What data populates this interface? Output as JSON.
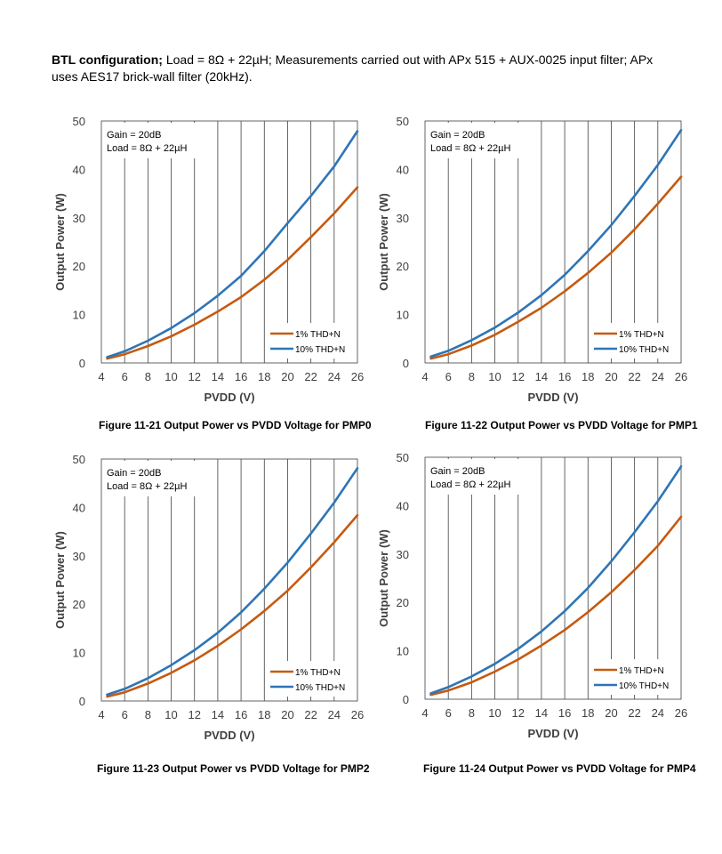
{
  "intro": {
    "bold": "BTL configuration;",
    "text": " Load = 8Ω + 22µH; Measurements carried out with APx 515 + AUX-0025 input filter; APx uses AES17 brick-wall filter (20kHz)."
  },
  "colors": {
    "thd1": "#c55a11",
    "thd10": "#2e75b6",
    "grid": "#404040",
    "text": "#404040"
  },
  "chart_data": [
    {
      "type": "line",
      "caption": "Figure 11-21 Output Power vs PVDD Voltage for PMP0",
      "xlabel": "PVDD (V)",
      "ylabel": "Output Power (W)",
      "xlim": [
        4,
        26
      ],
      "ylim": [
        0,
        50
      ],
      "xticks": [
        4,
        6,
        8,
        10,
        12,
        14,
        16,
        18,
        20,
        22,
        24,
        26
      ],
      "yticks": [
        0,
        10,
        20,
        30,
        40,
        50
      ],
      "annotations": [
        "Gain = 20dB",
        "Load = 8Ω + 22µH"
      ],
      "legend_position": "bottom-right",
      "x": [
        4.5,
        6,
        8,
        10,
        12,
        14,
        16,
        18,
        20,
        22,
        24,
        26
      ],
      "series": [
        {
          "name": "1% THD+N",
          "color": "#c55a11",
          "values": [
            0.9,
            1.8,
            3.5,
            5.5,
            7.9,
            10.6,
            13.6,
            17.2,
            21.3,
            26.0,
            30.9,
            36.3
          ]
        },
        {
          "name": "10% THD+N",
          "color": "#2e75b6",
          "values": [
            1.2,
            2.4,
            4.6,
            7.2,
            10.3,
            13.9,
            18.0,
            23.1,
            28.9,
            34.5,
            40.6,
            47.9
          ]
        }
      ]
    },
    {
      "type": "line",
      "caption": "Figure 11-22 Output Power vs PVDD Voltage for PMP1",
      "xlabel": "PVDD (V)",
      "ylabel": "Output Power (W)",
      "xlim": [
        4,
        26
      ],
      "ylim": [
        0,
        50
      ],
      "xticks": [
        4,
        6,
        8,
        10,
        12,
        14,
        16,
        18,
        20,
        22,
        24,
        26
      ],
      "yticks": [
        0,
        10,
        20,
        30,
        40,
        50
      ],
      "annotations": [
        "Gain = 20dB",
        "Load = 8Ω + 22µH"
      ],
      "legend_position": "bottom-right",
      "x": [
        4.5,
        6,
        8,
        10,
        12,
        14,
        16,
        18,
        20,
        22,
        24,
        26
      ],
      "series": [
        {
          "name": "1% THD+N",
          "color": "#c55a11",
          "values": [
            0.9,
            1.8,
            3.6,
            5.8,
            8.5,
            11.4,
            14.8,
            18.6,
            22.8,
            27.6,
            32.9,
            38.5
          ]
        },
        {
          "name": "10% THD+N",
          "color": "#2e75b6",
          "values": [
            1.3,
            2.5,
            4.7,
            7.3,
            10.4,
            14.0,
            18.2,
            23.1,
            28.5,
            34.5,
            40.9,
            48.1
          ]
        }
      ]
    },
    {
      "type": "line",
      "caption": "Figure 11-23 Output Power vs PVDD Voltage for PMP2",
      "xlabel": "PVDD (V)",
      "ylabel": "Output Power (W)",
      "xlim": [
        4,
        26
      ],
      "ylim": [
        0,
        50
      ],
      "xticks": [
        4,
        6,
        8,
        10,
        12,
        14,
        16,
        18,
        20,
        22,
        24,
        26
      ],
      "yticks": [
        0,
        10,
        20,
        30,
        40,
        50
      ],
      "annotations": [
        "Gain = 20dB",
        "Load = 8Ω + 22µH"
      ],
      "legend_position": "bottom-right",
      "x": [
        4.5,
        6,
        8,
        10,
        12,
        14,
        16,
        18,
        20,
        22,
        24,
        26
      ],
      "series": [
        {
          "name": "1% THD+N",
          "color": "#c55a11",
          "values": [
            0.9,
            1.8,
            3.6,
            5.8,
            8.4,
            11.4,
            14.8,
            18.6,
            22.8,
            27.6,
            32.8,
            38.4
          ]
        },
        {
          "name": "10% THD+N",
          "color": "#2e75b6",
          "values": [
            1.3,
            2.5,
            4.7,
            7.4,
            10.5,
            14.1,
            18.3,
            23.2,
            28.6,
            34.6,
            41.0,
            48.1
          ]
        }
      ]
    },
    {
      "type": "line",
      "caption": "Figure 11-24 Output Power vs PVDD Voltage for PMP4",
      "xlabel": "PVDD (V)",
      "ylabel": "Output Power (W)",
      "xlim": [
        4,
        26
      ],
      "ylim": [
        0,
        50
      ],
      "xticks": [
        4,
        6,
        8,
        10,
        12,
        14,
        16,
        18,
        20,
        22,
        24,
        26
      ],
      "yticks": [
        0,
        10,
        20,
        30,
        40,
        50
      ],
      "annotations": [
        "Gain = 20dB",
        "Load = 8Ω + 22µH"
      ],
      "legend_position": "bottom-right",
      "x": [
        4.5,
        6,
        8,
        10,
        12,
        14,
        16,
        18,
        20,
        22,
        24,
        26
      ],
      "series": [
        {
          "name": "1% THD+N",
          "color": "#c55a11",
          "values": [
            0.9,
            1.8,
            3.5,
            5.7,
            8.2,
            11.1,
            14.3,
            18.0,
            22.1,
            26.7,
            31.7,
            37.7
          ]
        },
        {
          "name": "10% THD+N",
          "color": "#2e75b6",
          "values": [
            1.2,
            2.5,
            4.7,
            7.3,
            10.4,
            14.0,
            18.2,
            23.0,
            28.5,
            34.5,
            40.9,
            48.1
          ]
        }
      ]
    }
  ]
}
